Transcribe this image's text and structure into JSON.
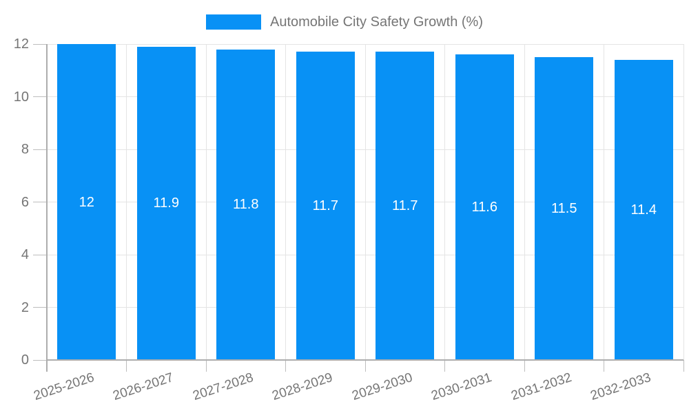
{
  "legend": {
    "label": "Automobile City Safety Growth (%)"
  },
  "chart_data": {
    "type": "bar",
    "title": "Automobile City Safety Growth (%)",
    "xlabel": "",
    "ylabel": "",
    "categories": [
      "2025-2026",
      "2026-2027",
      "2027-2028",
      "2028-2029",
      "2029-2030",
      "2030-2031",
      "2031-2032",
      "2032-2033"
    ],
    "values": [
      12,
      11.9,
      11.8,
      11.7,
      11.7,
      11.6,
      11.5,
      11.4
    ],
    "bar_labels": [
      "12",
      "11.9",
      "11.8",
      "11.7",
      "11.7",
      "11.6",
      "11.5",
      "11.4"
    ],
    "ylim": [
      0,
      12
    ],
    "yticks": [
      0,
      2,
      4,
      6,
      8,
      10,
      12
    ],
    "grid": true,
    "legend_position": "top",
    "x_tick_rotation": -18,
    "colors": {
      "bar": "#0891f5",
      "bar_label_text": "#ffffff",
      "axis_text": "#757575",
      "gridline": "#e4e4e4",
      "axis_line": "#adadad",
      "tick": "#bdbdbd"
    }
  }
}
